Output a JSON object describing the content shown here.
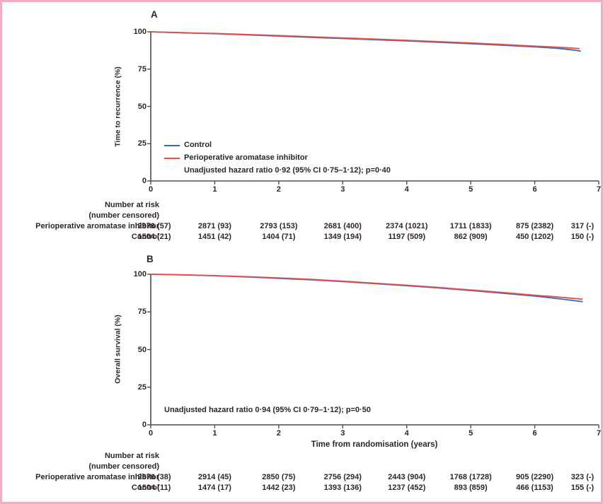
{
  "figure": {
    "frame_color": "#f0aec3",
    "text_color": "#2f2624",
    "axis_color": "#514b49"
  },
  "chart_data": [
    {
      "panel": "A",
      "type": "line",
      "ylabel": "Time to recurrence (%)",
      "xlabel": "",
      "xlim": [
        0,
        7
      ],
      "ylim": [
        0,
        100
      ],
      "x_ticks": [
        "0",
        "1",
        "2",
        "3",
        "4",
        "5",
        "6",
        "7"
      ],
      "y_ticks": [
        "100",
        "75",
        "50",
        "25",
        "0"
      ],
      "grid": false,
      "legend_position": "lower-left-inside",
      "legend": [
        {
          "label": "Control",
          "color": "#3e6ab3"
        },
        {
          "label": "Perioperative aromatase inhibitor",
          "color": "#e25048"
        }
      ],
      "annotation": "Unadjusted hazard ratio 0·92 (95% CI 0·75–1·12); p=0·40",
      "series": [
        {
          "name": "Control",
          "color": "#3e6ab3",
          "points": [
            [
              0,
              100
            ],
            [
              0.35,
              99.5
            ],
            [
              0.75,
              99.0
            ],
            [
              1,
              98.7
            ],
            [
              1.5,
              97.9
            ],
            [
              2,
              97.1
            ],
            [
              2.5,
              96.3
            ],
            [
              3,
              95.5
            ],
            [
              3.5,
              94.7
            ],
            [
              4,
              93.9
            ],
            [
              4.5,
              93.0
            ],
            [
              5,
              92.0
            ],
            [
              5.5,
              91.0
            ],
            [
              6,
              89.9
            ],
            [
              6.3,
              89.1
            ],
            [
              6.5,
              88.3
            ],
            [
              6.65,
              87.5
            ],
            [
              6.72,
              87.0
            ]
          ]
        },
        {
          "name": "Perioperative aromatase inhibitor",
          "color": "#e25048",
          "points": [
            [
              0,
              100
            ],
            [
              0.35,
              99.6
            ],
            [
              0.75,
              99.1
            ],
            [
              1,
              98.9
            ],
            [
              1.5,
              98.2
            ],
            [
              2,
              97.5
            ],
            [
              2.5,
              96.7
            ],
            [
              3,
              95.9
            ],
            [
              3.5,
              95.1
            ],
            [
              4,
              94.3
            ],
            [
              4.5,
              93.4
            ],
            [
              5,
              92.5
            ],
            [
              5.5,
              91.5
            ],
            [
              6,
              90.4
            ],
            [
              6.3,
              89.8
            ],
            [
              6.55,
              89.2
            ],
            [
              6.7,
              88.7
            ]
          ]
        }
      ],
      "at_risk": {
        "title": "Number at risk",
        "subtitle": "(number censored)",
        "rows": [
          {
            "label": "Perioperative aromatase inhibitor",
            "values": [
              "2976 (57)",
              "2871 (93)",
              "2793 (153)",
              "2681 (400)",
              "2374 (1021)",
              "1711 (1833)",
              "875 (2382)",
              "317 (-)"
            ]
          },
          {
            "label": "Control",
            "values": [
              "1504 (21)",
              "1451 (42)",
              "1404 (71)",
              "1349 (194)",
              "1197 (509)",
              "862 (909)",
              "450 (1202)",
              "150 (-)"
            ]
          }
        ]
      }
    },
    {
      "panel": "B",
      "type": "line",
      "ylabel": "Overall survival (%)",
      "xlabel": "Time from randomisation (years)",
      "xlim": [
        0,
        7
      ],
      "ylim": [
        0,
        100
      ],
      "x_ticks": [
        "0",
        "1",
        "2",
        "3",
        "4",
        "5",
        "6",
        "7"
      ],
      "y_ticks": [
        "100",
        "75",
        "50",
        "25",
        "0"
      ],
      "grid": false,
      "legend_position": "none",
      "legend": [],
      "annotation": "Unadjusted hazard ratio 0·94 (95% CI 0·79–1·12); p=0·50",
      "series": [
        {
          "name": "Control",
          "color": "#3e6ab3",
          "points": [
            [
              0,
              100
            ],
            [
              0.35,
              99.7
            ],
            [
              0.75,
              99.3
            ],
            [
              1,
              99.0
            ],
            [
              1.5,
              98.2
            ],
            [
              2,
              97.3
            ],
            [
              2.5,
              96.3
            ],
            [
              3,
              95.1
            ],
            [
              3.5,
              93.8
            ],
            [
              4,
              92.4
            ],
            [
              4.5,
              90.9
            ],
            [
              5,
              89.2
            ],
            [
              5.5,
              87.4
            ],
            [
              6,
              85.5
            ],
            [
              6.2,
              84.6
            ],
            [
              6.4,
              83.6
            ],
            [
              6.6,
              82.6
            ],
            [
              6.75,
              81.8
            ]
          ]
        },
        {
          "name": "Perioperative aromatase inhibitor",
          "color": "#e25048",
          "points": [
            [
              0,
              100
            ],
            [
              0.35,
              99.8
            ],
            [
              0.75,
              99.4
            ],
            [
              1,
              99.1
            ],
            [
              1.5,
              98.4
            ],
            [
              2,
              97.6
            ],
            [
              2.5,
              96.6
            ],
            [
              3,
              95.4
            ],
            [
              3.5,
              94.1
            ],
            [
              4,
              92.7
            ],
            [
              4.5,
              91.2
            ],
            [
              5,
              89.6
            ],
            [
              5.5,
              87.9
            ],
            [
              6,
              86.1
            ],
            [
              6.3,
              85.1
            ],
            [
              6.55,
              84.2
            ],
            [
              6.75,
              83.4
            ]
          ]
        }
      ],
      "at_risk": {
        "title": "Number at risk",
        "subtitle": "(number censored)",
        "rows": [
          {
            "label": "Perioperative aromatase inhibitor",
            "values": [
              "2976 (38)",
              "2914 (45)",
              "2850 (75)",
              "2756 (294)",
              "2443 (904)",
              "1768 (1728)",
              "905 (2290)",
              "323 (-)"
            ]
          },
          {
            "label": "Control",
            "values": [
              "1504 (11)",
              "1474 (17)",
              "1442 (23)",
              "1393 (136)",
              "1237 (452)",
              "893 (859)",
              "466 (1153)",
              "155 (-)"
            ]
          }
        ]
      }
    }
  ]
}
